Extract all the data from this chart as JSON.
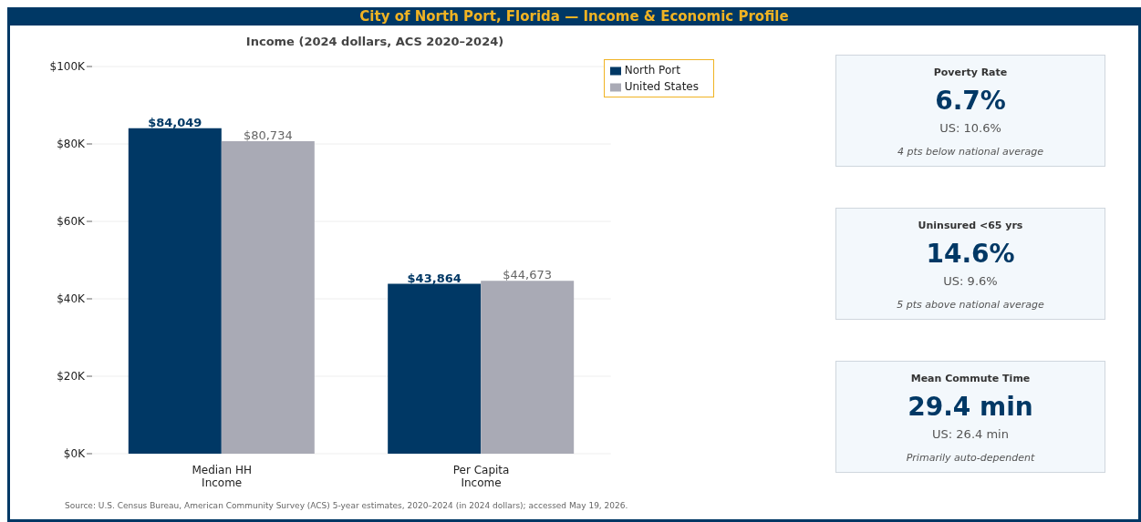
{
  "chart_data": [
    {
      "type": "bar",
      "title": "City of North Port, Florida  —  Income & Economic Profile",
      "subtitle": "Income (2024 dollars, ACS 2020–2024)",
      "categories": [
        "Median HH Income",
        "Per Capita Income"
      ],
      "series": [
        {
          "name": "North Port",
          "color": "#003865",
          "values": [
            84049,
            43864
          ],
          "value_labels": [
            "$84,049",
            "$43,864"
          ]
        },
        {
          "name": "United States",
          "color": "#a9aab5",
          "values": [
            80734,
            44673
          ],
          "value_labels": [
            "$80,734",
            "$44,673"
          ]
        }
      ],
      "ylim": [
        0,
        100000
      ],
      "yticks": [
        {
          "value": 0,
          "label": "$0K"
        },
        {
          "value": 20000,
          "label": "$20K"
        },
        {
          "value": 40000,
          "label": "$40K"
        },
        {
          "value": 60000,
          "label": "$60K"
        },
        {
          "value": 80000,
          "label": "$80K"
        },
        {
          "value": 100000,
          "label": "$100K"
        }
      ],
      "grid": "y",
      "legend": "top right",
      "annotations": [
        "Source: U.S. Census Bureau, American Community Survey (ACS) 5-year estimates, 2020–2024 (in 2024 dollars); accessed May 19, 2026."
      ]
    },
    {
      "type": "other",
      "title": "Poverty Rate",
      "annotations": [
        "6.7%",
        "US: 10.6%",
        "4 pts below national average"
      ]
    },
    {
      "type": "other",
      "title": "Uninsured <65 yrs",
      "annotations": [
        "14.6%",
        "US: 9.6%",
        "5 pts above national average"
      ]
    },
    {
      "type": "other",
      "title": "Mean Commute Time",
      "annotations": [
        "29.4 min",
        "US: 26.4 min",
        "Primarily auto-dependent"
      ]
    }
  ]
}
